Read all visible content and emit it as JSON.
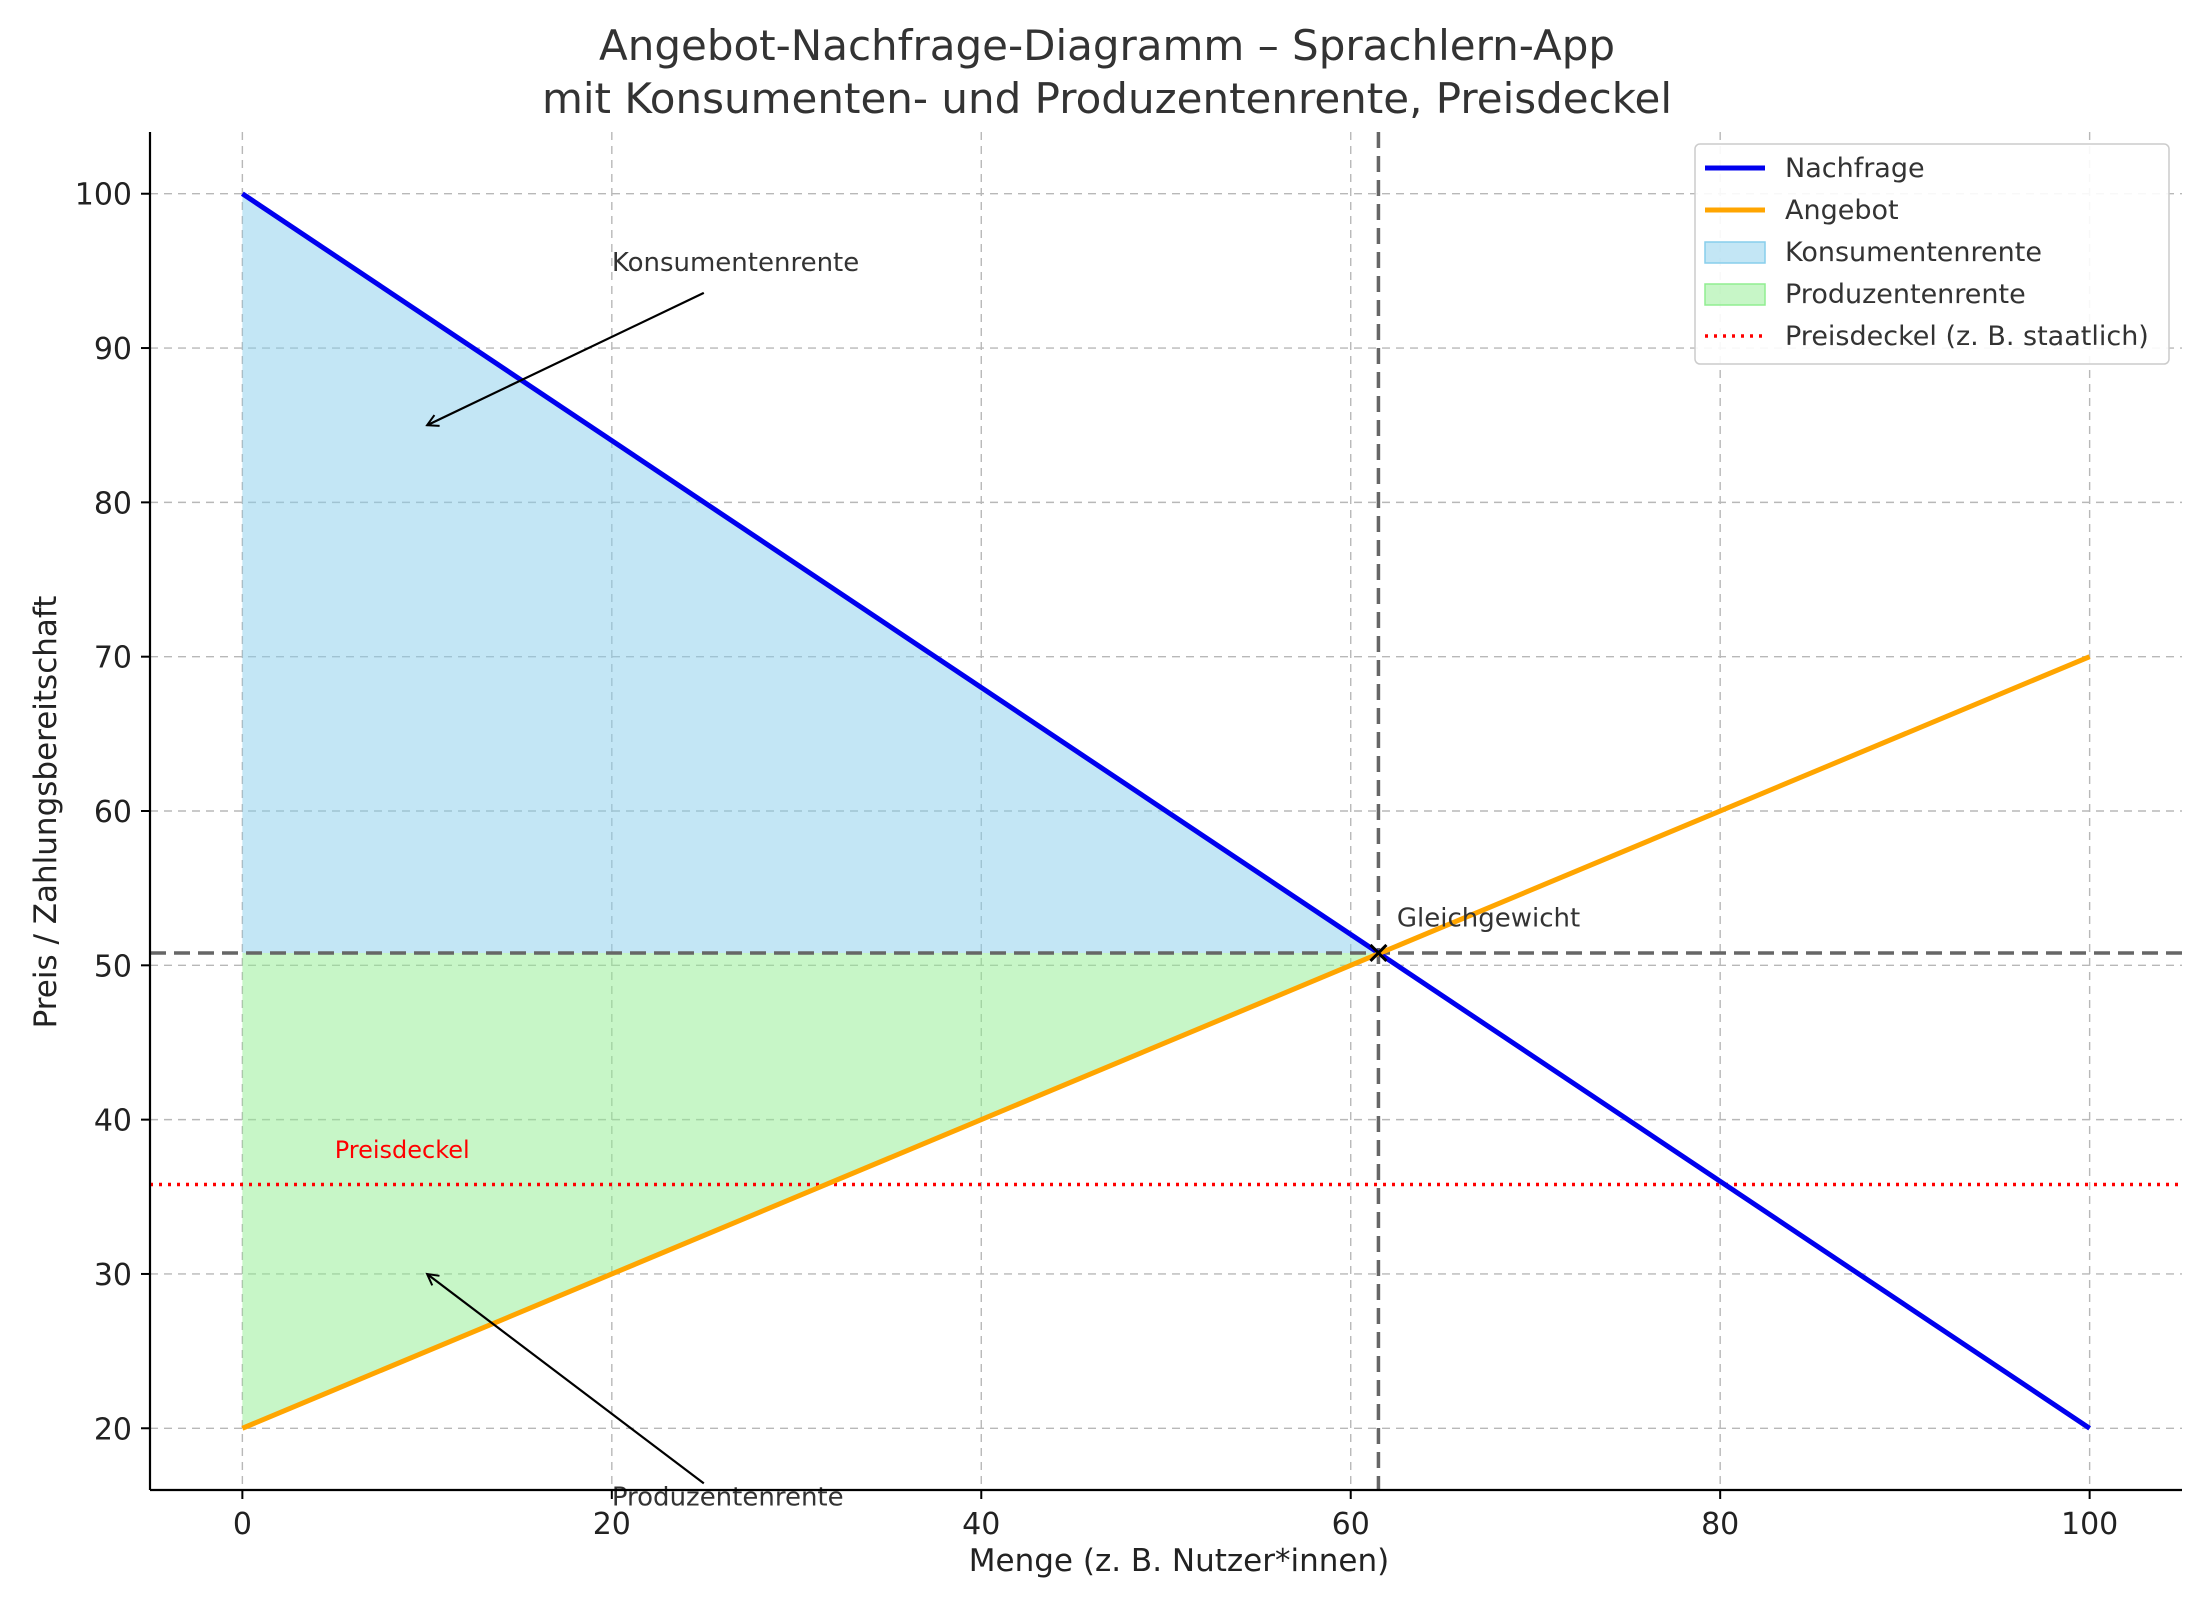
{
  "chart_data": {
    "type": "line",
    "title": "Angebot-Nachfrage-Diagramm – Sprachlern-App",
    "subtitle": "mit Konsumenten- und Produzentenrente, Preisdeckel",
    "xlabel": "Menge (z. B. Nutzer*innen)",
    "ylabel": "Preis / Zahlungsbereitschaft",
    "xlim": [
      -5,
      105
    ],
    "ylim": [
      16,
      104
    ],
    "xticks": [
      0,
      20,
      40,
      60,
      80,
      100
    ],
    "yticks": [
      20,
      30,
      40,
      50,
      60,
      70,
      80,
      90,
      100
    ],
    "grid": true,
    "legend_position": "top-right",
    "series": [
      {
        "name": "Nachfrage",
        "color": "#0000ee",
        "x": [
          0,
          100
        ],
        "y": [
          100,
          20
        ]
      },
      {
        "name": "Angebot",
        "color": "#ffa500",
        "x": [
          0,
          100
        ],
        "y": [
          20,
          70
        ]
      }
    ],
    "areas": [
      {
        "name": "Konsumentenrente",
        "color": "#87ceeb",
        "points": [
          [
            0,
            100
          ],
          [
            61.5,
            50.8
          ],
          [
            0,
            50.8
          ]
        ]
      },
      {
        "name": "Produzentenrente",
        "color": "#90ee90",
        "points": [
          [
            0,
            50.8
          ],
          [
            61.5,
            50.8
          ],
          [
            0,
            20
          ]
        ]
      }
    ],
    "price_cap": {
      "name": "Preisdeckel (z. B. staatlich)",
      "label": "Preisdeckel",
      "value": 35.8,
      "color": "#ff0000",
      "label_x": 5,
      "label_y": 37.5
    },
    "equilibrium": {
      "label": "Gleichgewicht",
      "x": 61.5,
      "y": 50.8,
      "label_x": 62.5,
      "label_y": 52.5
    },
    "annotations": [
      {
        "text": "Konsumentenrente",
        "text_x": 20,
        "text_y": 95,
        "arrow_to": [
          10,
          85
        ]
      },
      {
        "text": "Produzentenrente",
        "text_x": 20,
        "text_y": 15,
        "arrow_to": [
          10,
          30
        ]
      }
    ]
  }
}
